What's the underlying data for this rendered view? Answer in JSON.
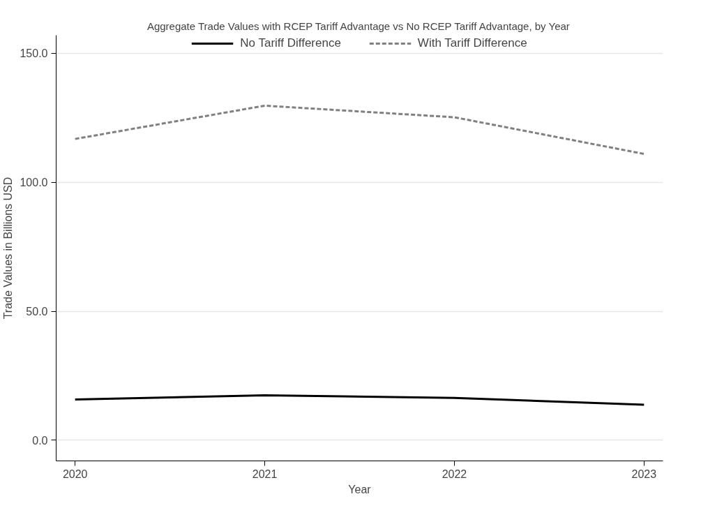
{
  "chart_data": {
    "type": "line",
    "title": "Aggregate Trade Values with RCEP Tariff Advantage vs No RCEP Tariff Advantage, by Year",
    "xlabel": "Year",
    "ylabel": "Trade Values in Billions USD",
    "x": [
      2020,
      2021,
      2022,
      2023
    ],
    "series": [
      {
        "name": "No Tariff Difference",
        "color": "#000000",
        "line_style": "solid",
        "values": [
          15.8,
          17.4,
          16.4,
          13.8
        ]
      },
      {
        "name": "With Tariff Difference",
        "color": "#808080",
        "line_style": "dashed",
        "values": [
          116.8,
          129.7,
          125.2,
          111.0
        ]
      }
    ],
    "xlim": [
      2019.9,
      2023.1
    ],
    "xticks": [
      2020,
      2021,
      2022,
      2023
    ],
    "ylim": [
      -8,
      157
    ],
    "yticks": [
      {
        "value": 0,
        "label": "0.0"
      },
      {
        "value": 50,
        "label": "50.0"
      },
      {
        "value": 100,
        "label": "100.0"
      },
      {
        "value": 150,
        "label": "150.0"
      }
    ],
    "grid": "y",
    "legend": "top",
    "marker": "none"
  }
}
